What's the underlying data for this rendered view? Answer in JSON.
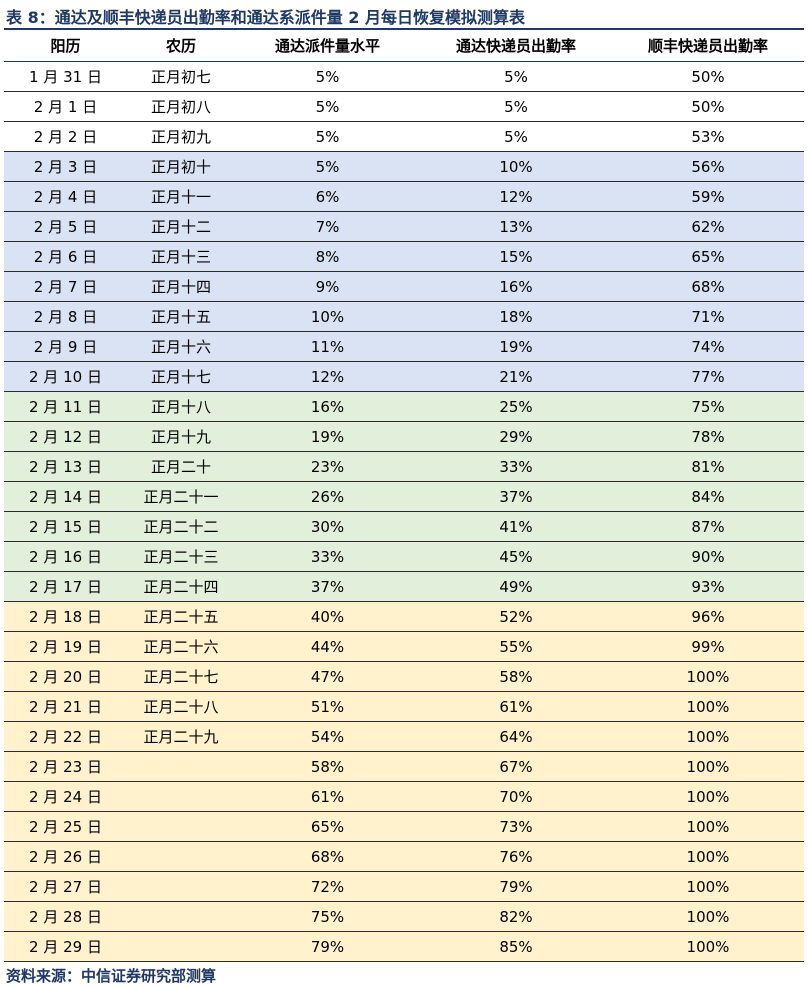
{
  "title": "表 8：通达及顺丰快递员出勤率和通达系派件量 2 月每日恢复模拟测算表",
  "columns": [
    "阳历",
    "农历",
    "通达派件量水平",
    "通达快递员出勤率",
    "顺丰快递员出勤率"
  ],
  "rows": [
    {
      "solar": "1 月 31 日",
      "lunar": "正月初七",
      "tongda_volume": "5%",
      "tongda_attendance": "5%",
      "sf_attendance": "50%",
      "band": "white"
    },
    {
      "solar": "2 月 1 日",
      "lunar": "正月初八",
      "tongda_volume": "5%",
      "tongda_attendance": "5%",
      "sf_attendance": "50%",
      "band": "white"
    },
    {
      "solar": "2 月 2 日",
      "lunar": "正月初九",
      "tongda_volume": "5%",
      "tongda_attendance": "5%",
      "sf_attendance": "53%",
      "band": "white"
    },
    {
      "solar": "2 月 3 日",
      "lunar": "正月初十",
      "tongda_volume": "5%",
      "tongda_attendance": "10%",
      "sf_attendance": "56%",
      "band": "blue"
    },
    {
      "solar": "2 月 4 日",
      "lunar": "正月十一",
      "tongda_volume": "6%",
      "tongda_attendance": "12%",
      "sf_attendance": "59%",
      "band": "blue"
    },
    {
      "solar": "2 月 5 日",
      "lunar": "正月十二",
      "tongda_volume": "7%",
      "tongda_attendance": "13%",
      "sf_attendance": "62%",
      "band": "blue"
    },
    {
      "solar": "2 月 6 日",
      "lunar": "正月十三",
      "tongda_volume": "8%",
      "tongda_attendance": "15%",
      "sf_attendance": "65%",
      "band": "blue"
    },
    {
      "solar": "2 月 7 日",
      "lunar": "正月十四",
      "tongda_volume": "9%",
      "tongda_attendance": "16%",
      "sf_attendance": "68%",
      "band": "blue"
    },
    {
      "solar": "2 月 8 日",
      "lunar": "正月十五",
      "tongda_volume": "10%",
      "tongda_attendance": "18%",
      "sf_attendance": "71%",
      "band": "blue"
    },
    {
      "solar": "2 月 9 日",
      "lunar": "正月十六",
      "tongda_volume": "11%",
      "tongda_attendance": "19%",
      "sf_attendance": "74%",
      "band": "blue"
    },
    {
      "solar": "2 月 10 日",
      "lunar": "正月十七",
      "tongda_volume": "12%",
      "tongda_attendance": "21%",
      "sf_attendance": "77%",
      "band": "blue"
    },
    {
      "solar": "2 月 11 日",
      "lunar": "正月十八",
      "tongda_volume": "16%",
      "tongda_attendance": "25%",
      "sf_attendance": "75%",
      "band": "green"
    },
    {
      "solar": "2 月 12 日",
      "lunar": "正月十九",
      "tongda_volume": "19%",
      "tongda_attendance": "29%",
      "sf_attendance": "78%",
      "band": "green"
    },
    {
      "solar": "2 月 13 日",
      "lunar": "正月二十",
      "tongda_volume": "23%",
      "tongda_attendance": "33%",
      "sf_attendance": "81%",
      "band": "green"
    },
    {
      "solar": "2 月 14 日",
      "lunar": "正月二十一",
      "tongda_volume": "26%",
      "tongda_attendance": "37%",
      "sf_attendance": "84%",
      "band": "green"
    },
    {
      "solar": "2 月 15 日",
      "lunar": "正月二十二",
      "tongda_volume": "30%",
      "tongda_attendance": "41%",
      "sf_attendance": "87%",
      "band": "green"
    },
    {
      "solar": "2 月 16 日",
      "lunar": "正月二十三",
      "tongda_volume": "33%",
      "tongda_attendance": "45%",
      "sf_attendance": "90%",
      "band": "green"
    },
    {
      "solar": "2 月 17 日",
      "lunar": "正月二十四",
      "tongda_volume": "37%",
      "tongda_attendance": "49%",
      "sf_attendance": "93%",
      "band": "green"
    },
    {
      "solar": "2 月 18 日",
      "lunar": "正月二十五",
      "tongda_volume": "40%",
      "tongda_attendance": "52%",
      "sf_attendance": "96%",
      "band": "yellow"
    },
    {
      "solar": "2 月 19 日",
      "lunar": "正月二十六",
      "tongda_volume": "44%",
      "tongda_attendance": "55%",
      "sf_attendance": "99%",
      "band": "yellow"
    },
    {
      "solar": "2 月 20 日",
      "lunar": "正月二十七",
      "tongda_volume": "47%",
      "tongda_attendance": "58%",
      "sf_attendance": "100%",
      "band": "yellow"
    },
    {
      "solar": "2 月 21 日",
      "lunar": "正月二十八",
      "tongda_volume": "51%",
      "tongda_attendance": "61%",
      "sf_attendance": "100%",
      "band": "yellow"
    },
    {
      "solar": "2 月 22 日",
      "lunar": "正月二十九",
      "tongda_volume": "54%",
      "tongda_attendance": "64%",
      "sf_attendance": "100%",
      "band": "yellow"
    },
    {
      "solar": "2 月 23 日",
      "lunar": "",
      "tongda_volume": "58%",
      "tongda_attendance": "67%",
      "sf_attendance": "100%",
      "band": "yellow"
    },
    {
      "solar": "2 月 24 日",
      "lunar": "",
      "tongda_volume": "61%",
      "tongda_attendance": "70%",
      "sf_attendance": "100%",
      "band": "yellow"
    },
    {
      "solar": "2 月 25 日",
      "lunar": "",
      "tongda_volume": "65%",
      "tongda_attendance": "73%",
      "sf_attendance": "100%",
      "band": "yellow"
    },
    {
      "solar": "2 月 26 日",
      "lunar": "",
      "tongda_volume": "68%",
      "tongda_attendance": "76%",
      "sf_attendance": "100%",
      "band": "yellow"
    },
    {
      "solar": "2 月 27 日",
      "lunar": "",
      "tongda_volume": "72%",
      "tongda_attendance": "79%",
      "sf_attendance": "100%",
      "band": "yellow"
    },
    {
      "solar": "2 月 28 日",
      "lunar": "",
      "tongda_volume": "75%",
      "tongda_attendance": "82%",
      "sf_attendance": "100%",
      "band": "yellow"
    },
    {
      "solar": "2 月 29 日",
      "lunar": "",
      "tongda_volume": "79%",
      "tongda_attendance": "85%",
      "sf_attendance": "100%",
      "band": "yellow"
    }
  ],
  "source": "资料来源：中信证券研究部测算",
  "band_colors": {
    "white": "#ffffff",
    "blue": "#dae3f3",
    "green": "#e2efda",
    "yellow": "#fff2cc"
  },
  "title_color": "#1f3864"
}
